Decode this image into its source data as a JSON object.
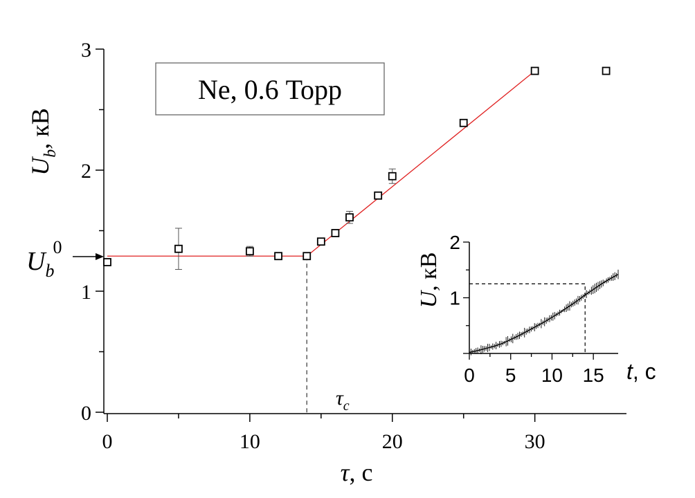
{
  "legend": "Ne, 0.6 Торр",
  "colors": {
    "fit": "#e02020",
    "marker": "#000000",
    "axis": "#000000"
  },
  "chart_data": [
    {
      "type": "scatter",
      "xlabel": {
        "main": "τ",
        "unit": ", с"
      },
      "ylabel": {
        "main": "U",
        "sub": "b",
        "unit": ", кВ"
      },
      "xlim": [
        0,
        34
      ],
      "ylim": [
        0,
        3
      ],
      "x_ticks": [
        "0",
        "10",
        "20",
        "30"
      ],
      "y_ticks": [
        "0",
        "1",
        "2",
        "3"
      ],
      "series": [
        {
          "marker": "open-square",
          "points": [
            {
              "x": 0,
              "y": 1.24,
              "err": 0.0
            },
            {
              "x": 5,
              "y": 1.35,
              "err": 0.17
            },
            {
              "x": 10,
              "y": 1.33,
              "err": 0.04
            },
            {
              "x": 12,
              "y": 1.29,
              "err": 0.03
            },
            {
              "x": 14,
              "y": 1.29,
              "err": 0.0
            },
            {
              "x": 15,
              "y": 1.41,
              "err": 0.03
            },
            {
              "x": 16,
              "y": 1.48,
              "err": 0.02
            },
            {
              "x": 17,
              "y": 1.61,
              "err": 0.05
            },
            {
              "x": 19,
              "y": 1.79,
              "err": 0.0
            },
            {
              "x": 20,
              "y": 1.95,
              "err": 0.06
            },
            {
              "x": 25,
              "y": 2.39,
              "err": 0.0
            },
            {
              "x": 30,
              "y": 2.82,
              "err": 0.0
            },
            {
              "x": 35,
              "y": 2.82,
              "err": 0.0
            }
          ]
        }
      ],
      "fit_line": [
        [
          0,
          1.29
        ],
        [
          14,
          1.29
        ],
        [
          30,
          2.82
        ]
      ],
      "annotations": {
        "critical_tau": {
          "x": 14,
          "label": "τ",
          "sub": "c"
        },
        "plateau": {
          "y": 1.29,
          "label": "U",
          "sub": "b",
          "sup": "0"
        }
      }
    },
    {
      "type": "line",
      "inset": true,
      "xlabel": {
        "main": "t",
        "unit": ", с"
      },
      "ylabel": {
        "main": "U",
        "unit": ", кВ"
      },
      "xlim": [
        0,
        18
      ],
      "ylim": [
        0,
        2
      ],
      "x_ticks": [
        "0",
        "5",
        "10",
        "15"
      ],
      "y_ticks": [
        "1",
        "2"
      ],
      "x": [
        0,
        1,
        2,
        3,
        4,
        5,
        6,
        7,
        8,
        9,
        10,
        11,
        12,
        13,
        14,
        15,
        16,
        17,
        18
      ],
      "y": [
        0.02,
        0.05,
        0.09,
        0.13,
        0.18,
        0.25,
        0.32,
        0.4,
        0.48,
        0.56,
        0.65,
        0.74,
        0.84,
        0.94,
        1.05,
        1.15,
        1.25,
        1.34,
        1.42
      ],
      "marker_level": {
        "x": 14,
        "y": 1.25
      }
    }
  ]
}
